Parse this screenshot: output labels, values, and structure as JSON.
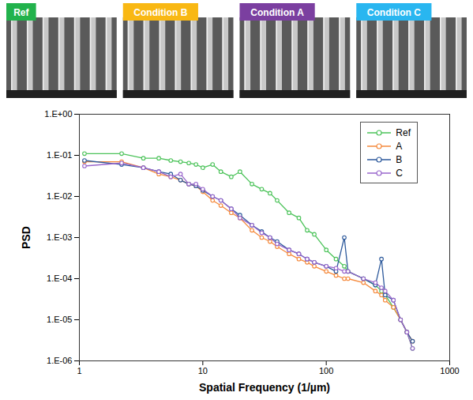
{
  "panels": [
    {
      "label": "Ref",
      "color": "#22b24c"
    },
    {
      "label": "Condition B",
      "color": "#f9b813"
    },
    {
      "label": "Condition A",
      "color": "#7b3fa0"
    },
    {
      "label": "Condition C",
      "color": "#29b6f0"
    }
  ],
  "chart_data": {
    "type": "line",
    "log": true,
    "grid": false,
    "legend": "top-right",
    "marker": "circle",
    "x_label": "Spatial Frequency (1/µm)",
    "y_label": "PSD",
    "xlim": [
      1,
      1000
    ],
    "xticks": [
      1,
      10,
      100,
      1000
    ],
    "ylim": [
      1e-06,
      1
    ],
    "yticks": [
      {
        "value": 1e-06,
        "label": "1.E-06"
      },
      {
        "value": 1e-05,
        "label": "1.E-05"
      },
      {
        "value": 0.0001,
        "label": "1.E-04"
      },
      {
        "value": 0.001,
        "label": "1.E-03"
      },
      {
        "value": 0.01,
        "label": "1.E-02"
      },
      {
        "value": 0.1,
        "label": "1.E-01"
      },
      {
        "value": 1,
        "label": "1.E+00"
      }
    ],
    "x": [
      1.1,
      2.2,
      3.3,
      4.4,
      5.5,
      6.6,
      7.7,
      8.8,
      10,
      12,
      14,
      17,
      20,
      25,
      30,
      35,
      40,
      50,
      60,
      70,
      80,
      100,
      120,
      140,
      150,
      200,
      250,
      280,
      300,
      350,
      400,
      450,
      500
    ],
    "series": [
      {
        "name": "Ref",
        "color": "#4cc35a",
        "values": [
          0.11,
          0.11,
          0.085,
          0.085,
          0.075,
          0.07,
          0.065,
          0.06,
          0.05,
          0.06,
          0.04,
          0.03,
          0.04,
          0.02,
          0.015,
          0.012,
          0.008,
          0.004,
          0.003,
          0.0015,
          0.0012,
          0.0005,
          0.0003,
          0.0002,
          0.00015,
          0.0001,
          7e-05,
          5e-05,
          4e-05,
          2e-05,
          1e-05,
          5e-06,
          2e-06
        ]
      },
      {
        "name": "A",
        "color": "#f5893b",
        "values": [
          0.07,
          0.07,
          0.05,
          0.035,
          0.03,
          0.025,
          0.02,
          0.018,
          0.013,
          0.008,
          0.006,
          0.004,
          0.003,
          0.0015,
          0.001,
          0.0008,
          0.0006,
          0.0004,
          0.0003,
          0.00025,
          0.0002,
          0.00015,
          0.00012,
          0.0001,
          0.0001,
          8e-05,
          5e-05,
          4e-05,
          3e-05,
          2e-05,
          1e-05,
          5e-06,
          3e-06
        ]
      },
      {
        "name": "B",
        "color": "#2e5a9c",
        "values": [
          0.075,
          0.06,
          0.05,
          0.04,
          0.035,
          0.025,
          0.02,
          0.018,
          0.014,
          0.01,
          0.008,
          0.005,
          0.0035,
          0.002,
          0.0014,
          0.001,
          0.0008,
          0.0005,
          0.0004,
          0.0003,
          0.00025,
          0.0002,
          0.00015,
          0.001,
          0.00015,
          0.0001,
          7e-05,
          0.0003,
          4e-05,
          3e-05,
          1e-05,
          5e-06,
          3e-06
        ]
      },
      {
        "name": "C",
        "color": "#9966cc",
        "values": [
          0.055,
          0.065,
          0.05,
          0.04,
          0.03,
          0.035,
          0.02,
          0.02,
          0.015,
          0.01,
          0.008,
          0.005,
          0.003,
          0.002,
          0.0013,
          0.001,
          0.0007,
          0.0005,
          0.0004,
          0.0003,
          0.00025,
          0.0002,
          0.00018,
          0.00015,
          0.00015,
          0.0001,
          8e-05,
          6e-05,
          5e-05,
          3e-05,
          1e-05,
          5e-06,
          2e-06
        ]
      }
    ]
  }
}
